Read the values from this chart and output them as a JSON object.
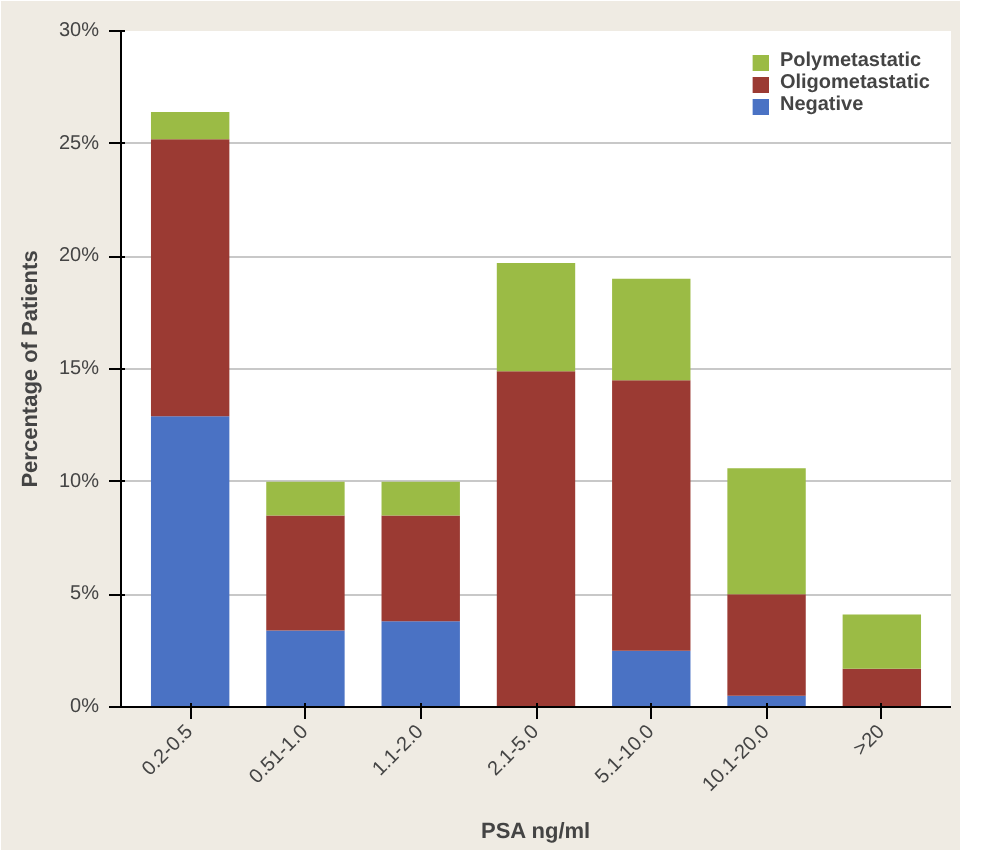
{
  "chart_data": {
    "type": "bar",
    "stacked": true,
    "xlabel": "PSA ng/ml",
    "ylabel": "Percentage of Patients",
    "categories": [
      "0.2-0.5",
      "0.51-1.0",
      "1.1-2.0",
      "2.1-5.0",
      "5.1-10.0",
      "10.1-20.0",
      ">20"
    ],
    "series": [
      {
        "name": "Negative",
        "color": "#4a72c4",
        "values": [
          12.9,
          3.4,
          3.8,
          0,
          2.5,
          0.5,
          0
        ]
      },
      {
        "name": "Oligometastatic",
        "color": "#9b3a33",
        "values": [
          12.3,
          5.1,
          4.7,
          14.9,
          12.0,
          4.5,
          1.7
        ]
      },
      {
        "name": "Polymetastatic",
        "color": "#9bbb45",
        "values": [
          1.2,
          1.5,
          1.5,
          4.8,
          4.5,
          5.6,
          2.4
        ]
      }
    ],
    "ylim": [
      0,
      30
    ],
    "yticks": [
      {
        "value": 0,
        "label": "0%"
      },
      {
        "value": 5,
        "label": "5%"
      },
      {
        "value": 10,
        "label": "10%"
      },
      {
        "value": 15,
        "label": "15%"
      },
      {
        "value": 20,
        "label": "20%"
      },
      {
        "value": 25,
        "label": "25%"
      },
      {
        "value": 30,
        "label": "30%"
      }
    ],
    "grid": "y",
    "legend": "top right"
  }
}
